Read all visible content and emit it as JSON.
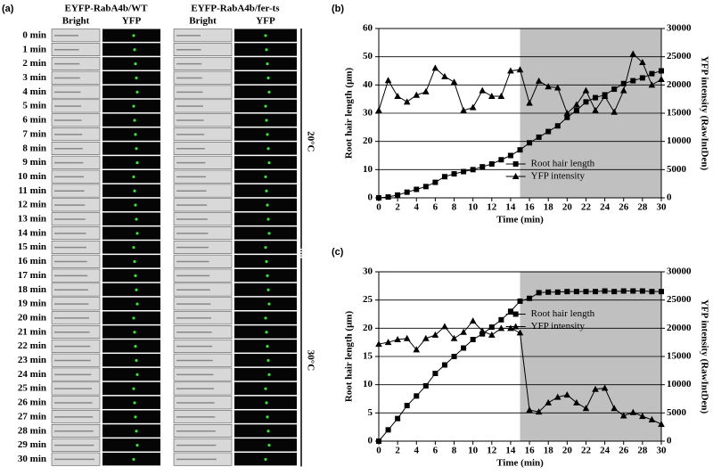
{
  "panel_a": {
    "label": "(a)",
    "groups": [
      {
        "title": "EYFP-RabA4b/WT",
        "columns": [
          "Bright",
          "YFP"
        ]
      },
      {
        "title": "EYFP-RabA4b/fer-ts",
        "columns": [
          "Bright",
          "YFP"
        ]
      }
    ],
    "times": [
      "0 min",
      "1 min",
      "2 min",
      "3 min",
      "4 min",
      "5 min",
      "6 min",
      "7 min",
      "8 min",
      "9 min",
      "10 min",
      "11 min",
      "12 min",
      "13 min",
      "14 min",
      "15 min",
      "16 min",
      "17 min",
      "18 min",
      "19 min",
      "20 min",
      "21 min",
      "22 min",
      "23 min",
      "24 min",
      "25 min",
      "26 min",
      "27 min",
      "28 min",
      "29 min",
      "30 min"
    ],
    "temperatures": [
      "20°C",
      "30°C"
    ]
  },
  "chart_data": [
    {
      "type": "line",
      "label": "(b)",
      "x_label": "Time (min)",
      "y_label": "Root hair length (μm)",
      "y2_label": "YFP intensity (RawIntDen)",
      "x": [
        0,
        1,
        2,
        3,
        4,
        5,
        6,
        7,
        8,
        9,
        10,
        11,
        12,
        13,
        14,
        15,
        16,
        17,
        18,
        19,
        20,
        21,
        22,
        23,
        24,
        25,
        26,
        27,
        28,
        29,
        30
      ],
      "xlim": [
        0,
        30
      ],
      "xticks": [
        0,
        2,
        4,
        6,
        8,
        10,
        12,
        14,
        16,
        18,
        20,
        22,
        24,
        26,
        28,
        30
      ],
      "ylim": [
        0,
        60
      ],
      "yticks": [
        0,
        10,
        20,
        30,
        40,
        50,
        60
      ],
      "y2lim": [
        0,
        30000
      ],
      "y2ticks": [
        0,
        5000,
        10000,
        15000,
        20000,
        25000,
        30000
      ],
      "shaded_xrange": [
        15,
        30
      ],
      "shade_color": "#c0c0c0",
      "grid": true,
      "legend": "lower-center",
      "series": [
        {
          "name": "Root hair length",
          "color": "#000000",
          "marker": "square",
          "values": [
            0,
            0.3,
            1,
            2,
            3,
            4,
            5.5,
            7.5,
            8.5,
            9.3,
            10,
            11,
            12,
            13.5,
            15,
            17,
            19.5,
            21.5,
            23.5,
            25.5,
            28.5,
            31,
            34,
            35.5,
            36.5,
            38.5,
            40.5,
            41.5,
            42.5,
            44,
            45
          ]
        },
        {
          "name": "YFP intensity",
          "color": "#000000",
          "marker": "triangle",
          "axis": "y2",
          "values": [
            15500,
            20800,
            18000,
            17000,
            18200,
            18800,
            23000,
            21500,
            20500,
            15500,
            16000,
            19000,
            18000,
            18000,
            22500,
            22700,
            16800,
            20700,
            19700,
            19500,
            15000,
            16500,
            19000,
            15500,
            18000,
            15200,
            19000,
            25500,
            24000,
            20000,
            21000
          ]
        }
      ]
    },
    {
      "type": "line",
      "label": "(c)",
      "x_label": "Time (min)",
      "y_label": "Root hair length (μm)",
      "y2_label": "YFP intensity (RawIntDen)",
      "x": [
        0,
        1,
        2,
        3,
        4,
        5,
        6,
        7,
        8,
        9,
        10,
        11,
        12,
        13,
        14,
        15,
        16,
        17,
        18,
        19,
        20,
        21,
        22,
        23,
        24,
        25,
        26,
        27,
        28,
        29,
        30
      ],
      "xlim": [
        0,
        30
      ],
      "xticks": [
        0,
        2,
        4,
        6,
        8,
        10,
        12,
        14,
        16,
        18,
        20,
        22,
        24,
        26,
        28,
        30
      ],
      "ylim": [
        0,
        30
      ],
      "yticks": [
        0,
        5,
        10,
        15,
        20,
        25,
        30
      ],
      "y2lim": [
        0,
        30000
      ],
      "y2ticks": [
        0,
        5000,
        10000,
        15000,
        20000,
        25000,
        30000
      ],
      "shaded_xrange": [
        15,
        30
      ],
      "shade_color": "#c0c0c0",
      "grid": true,
      "legend": "upper-center",
      "series": [
        {
          "name": "Root hair length",
          "color": "#000000",
          "marker": "square",
          "values": [
            0,
            2,
            4,
            6.3,
            8,
            9.8,
            12,
            13.5,
            15,
            16.5,
            18,
            19,
            20.2,
            21.5,
            23,
            24.8,
            25.3,
            26.3,
            26.4,
            26.4,
            26.5,
            26.5,
            26.5,
            26.5,
            26.6,
            26.5,
            26.6,
            26.6,
            26.6,
            26.5,
            26.5
          ]
        },
        {
          "name": "YFP intensity",
          "color": "#000000",
          "marker": "triangle",
          "axis": "y2",
          "values": [
            17200,
            17500,
            18000,
            18200,
            16200,
            18200,
            18800,
            20300,
            18200,
            19300,
            21300,
            19500,
            18800,
            20000,
            20000,
            19200,
            5500,
            5200,
            6800,
            7800,
            8200,
            6800,
            5800,
            9200,
            9400,
            5800,
            4500,
            5100,
            4400,
            3800,
            3000
          ]
        }
      ]
    }
  ]
}
